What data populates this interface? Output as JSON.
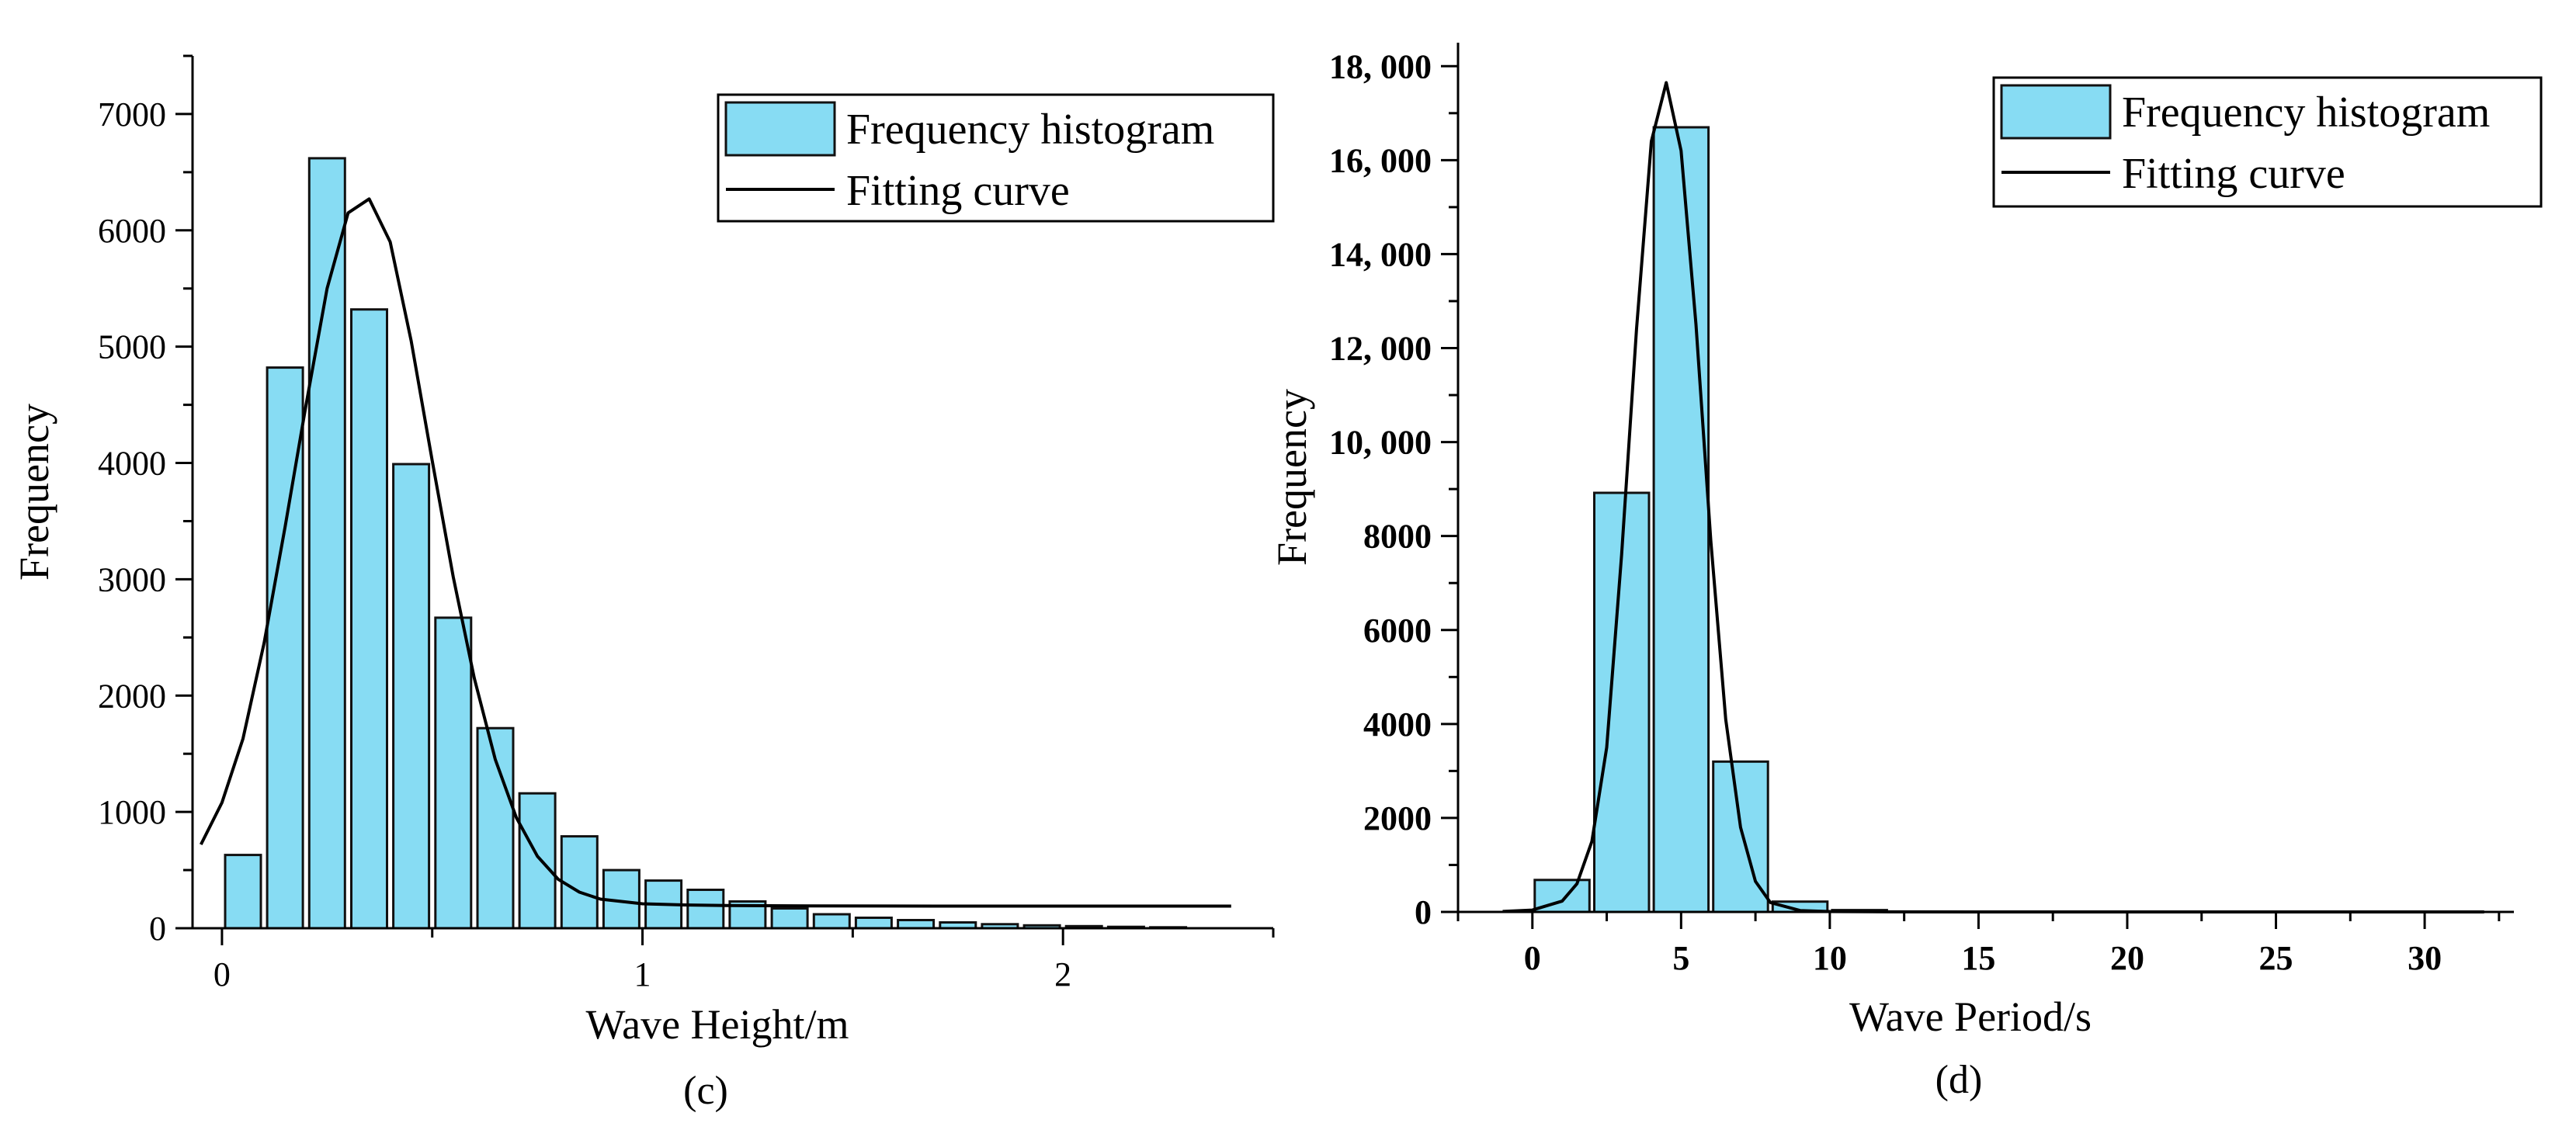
{
  "colors": {
    "bar_fill": "#87DCF3",
    "bar_stroke": "#111111",
    "curve": "#000000",
    "axis": "#000000"
  },
  "chart_data": [
    {
      "panel_label": "(c)",
      "type": "bar",
      "xlabel": "Wave Height/m",
      "ylabel": "Frequency",
      "xlim": [
        -0.07,
        2.5
      ],
      "ylim": [
        0,
        7500
      ],
      "x_ticks": [
        0,
        1,
        2
      ],
      "x_tick_labels": [
        "0",
        "1",
        "2"
      ],
      "y_ticks": [
        0,
        1000,
        2000,
        3000,
        4000,
        5000,
        6000,
        7000
      ],
      "y_tick_labels": [
        "0",
        "1000",
        "2000",
        "3000",
        "4000",
        "5000",
        "6000",
        "7000"
      ],
      "bin_width": 0.1,
      "legend": {
        "location": "top-right",
        "entries": [
          "Frequency histogram",
          "Fitting curve"
        ]
      },
      "series": [
        {
          "name": "Frequency histogram",
          "kind": "histogram",
          "x": [
            0.05,
            0.15,
            0.25,
            0.35,
            0.45,
            0.55,
            0.65,
            0.75,
            0.85,
            0.95,
            1.05,
            1.15,
            1.25,
            1.35,
            1.45,
            1.55,
            1.65,
            1.75,
            1.85,
            1.95,
            2.05,
            2.15,
            2.25
          ],
          "values": [
            630,
            4820,
            6620,
            5320,
            3990,
            2670,
            1720,
            1160,
            790,
            500,
            410,
            330,
            230,
            170,
            120,
            90,
            70,
            50,
            35,
            25,
            18,
            12,
            8
          ]
        },
        {
          "name": "Fitting curve",
          "kind": "line",
          "x": [
            -0.05,
            0.0,
            0.05,
            0.1,
            0.15,
            0.2,
            0.25,
            0.3,
            0.35,
            0.4,
            0.45,
            0.5,
            0.55,
            0.6,
            0.65,
            0.7,
            0.75,
            0.8,
            0.85,
            0.9,
            1.0,
            1.1,
            1.2,
            1.4,
            1.7,
            2.0,
            2.4
          ],
          "values": [
            720,
            1080,
            1630,
            2450,
            3450,
            4500,
            5500,
            6150,
            6270,
            5900,
            5050,
            4020,
            3020,
            2150,
            1450,
            950,
            620,
            420,
            310,
            250,
            210,
            200,
            195,
            192,
            190,
            190,
            190
          ]
        }
      ]
    },
    {
      "panel_label": "(d)",
      "type": "bar",
      "xlabel": "Wave Period/s",
      "ylabel": "Frequency",
      "xlim": [
        -2.5,
        33
      ],
      "ylim": [
        0,
        18500
      ],
      "x_ticks": [
        0,
        5,
        10,
        15,
        20,
        25,
        30
      ],
      "x_tick_labels": [
        "0",
        "5",
        "10",
        "15",
        "20",
        "25",
        "30"
      ],
      "y_ticks": [
        0,
        2000,
        4000,
        6000,
        8000,
        10000,
        12000,
        14000,
        16000,
        18000
      ],
      "y_tick_labels": [
        "0",
        "2000",
        "4000",
        "6000",
        "8000",
        "10, 000",
        "12, 000",
        "14, 000",
        "16, 000",
        "18, 000"
      ],
      "bin_width": 2,
      "legend": {
        "location": "top-right",
        "entries": [
          "Frequency histogram",
          "Fitting curve"
        ]
      },
      "series": [
        {
          "name": "Frequency histogram",
          "kind": "histogram",
          "x": [
            1,
            3,
            5,
            7,
            9,
            11
          ],
          "values": [
            680,
            8920,
            16700,
            3200,
            220,
            40
          ]
        },
        {
          "name": "Fitting curve",
          "kind": "line",
          "x": [
            -1,
            0,
            1,
            1.5,
            2,
            2.5,
            3,
            3.5,
            4,
            4.5,
            5,
            5.5,
            6,
            6.5,
            7,
            7.5,
            8,
            9,
            10,
            12,
            15,
            20,
            25,
            30,
            32
          ],
          "values": [
            10,
            40,
            230,
            600,
            1500,
            3500,
            7600,
            12400,
            16400,
            17650,
            16200,
            12500,
            7900,
            4100,
            1800,
            650,
            200,
            30,
            8,
            2,
            0,
            0,
            0,
            0,
            0
          ]
        }
      ]
    }
  ]
}
